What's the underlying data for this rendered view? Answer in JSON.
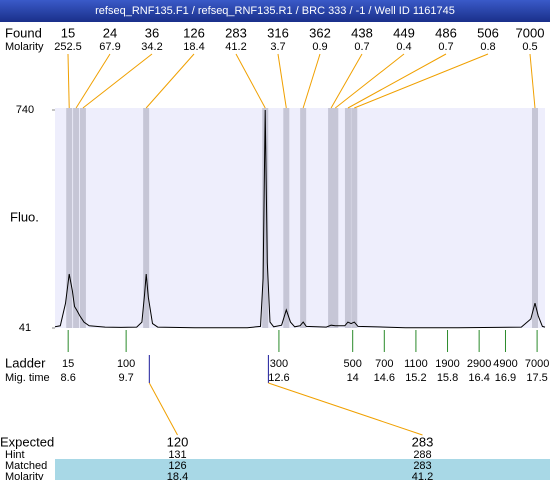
{
  "chart_data": {
    "type": "line",
    "title": "refseq_RNF135.F1 / refseq_RNF135.R1 / BRC 333 / -1 / Well ID 1161745",
    "y_label": "Fluo.",
    "ylim": [
      41,
      740
    ],
    "yticks": [
      41,
      740
    ],
    "xlim": [
      8.35,
      17.65
    ],
    "trace": {
      "color": "#000000",
      "x": [
        8.35,
        8.45,
        8.55,
        8.62,
        8.68,
        8.72,
        8.76,
        8.82,
        8.9,
        9.0,
        9.3,
        9.6,
        9.9,
        10.0,
        10.05,
        10.08,
        10.12,
        10.2,
        10.3,
        11.0,
        12.0,
        12.25,
        12.3,
        12.34,
        12.38,
        12.43,
        12.5,
        12.65,
        12.74,
        12.82,
        12.9,
        13.0,
        13.06,
        13.12,
        13.5,
        13.59,
        13.67,
        13.85,
        13.91,
        13.97,
        14.03,
        14.1,
        15.0,
        16.0,
        17.2,
        17.38,
        17.46,
        17.52,
        17.6,
        17.65
      ],
      "y": [
        45,
        48,
        120,
        214,
        160,
        110,
        99,
        80,
        60,
        48,
        44,
        43,
        44,
        60,
        150,
        214,
        140,
        55,
        44,
        42,
        42,
        46,
        200,
        740,
        250,
        60,
        45,
        50,
        99,
        60,
        45,
        48,
        60,
        46,
        44,
        50,
        48,
        48,
        60,
        55,
        60,
        46,
        42,
        42,
        44,
        70,
        121,
        80,
        46,
        44
      ]
    },
    "found": {
      "label": "Found",
      "molarity_label": "Molarity",
      "sizes": [
        15,
        24,
        36,
        126,
        283,
        316,
        362,
        438,
        449,
        486,
        506,
        7000
      ],
      "molarity": [
        252.5,
        67.9,
        34.2,
        18.4,
        41.2,
        3.7,
        0.9,
        0.7,
        0.4,
        0.7,
        0.8,
        0.5
      ],
      "times": [
        8.62,
        8.75,
        8.88,
        10.08,
        12.34,
        12.74,
        13.06,
        13.59,
        13.67,
        13.91,
        14.03,
        17.46
      ]
    },
    "ladder": {
      "label": "Ladder",
      "time_label": "Mig. time",
      "sizes": [
        15,
        100,
        300,
        500,
        700,
        1100,
        1900,
        2900,
        4900,
        7000
      ],
      "times": [
        8.6,
        9.7,
        12.6,
        14,
        14.6,
        15.2,
        15.8,
        16.4,
        16.9,
        17.5
      ],
      "color": "#2a8a2a"
    },
    "expected": {
      "label": "Expected",
      "hint_label": "Hint",
      "matched_label": "Matched",
      "molarity_label": "Molarity",
      "sizes": [
        120,
        283
      ],
      "hint": [
        131,
        288
      ],
      "matched": [
        126,
        283
      ],
      "molarity": [
        18.4,
        41.2
      ],
      "times": [
        10.14,
        12.4
      ],
      "color": "#1a1a9a"
    }
  }
}
